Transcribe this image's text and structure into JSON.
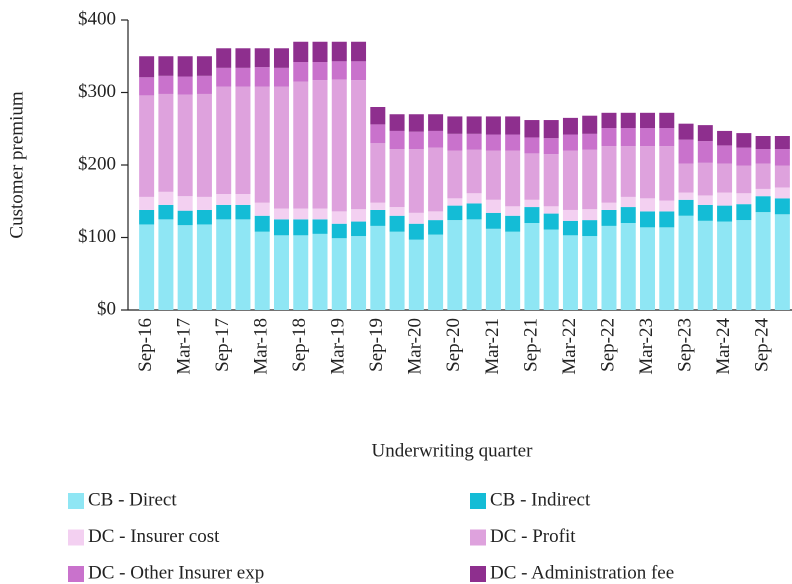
{
  "chart_data": {
    "type": "stacked_bar",
    "y_label": "Customer premium",
    "x_label": "Underwriting quarter",
    "categories": [
      "Sep-16",
      null,
      "Mar-17",
      null,
      "Sep-17",
      null,
      "Mar-18",
      null,
      "Sep-18",
      null,
      "Mar-19",
      null,
      "Sep-19",
      null,
      "Mar-20",
      null,
      "Sep-20",
      null,
      "Mar-21",
      null,
      "Sep-21",
      null,
      "Mar-22",
      null,
      "Sep-22",
      null,
      "Mar-23",
      null,
      "Sep-23",
      null,
      "Mar-24",
      null,
      "Sep-24",
      null
    ],
    "series": [
      {
        "name": "CB - Direct",
        "color": "#8fe6f4",
        "values": [
          118,
          125,
          117,
          118,
          125,
          125,
          108,
          103,
          103,
          105,
          99,
          102,
          116,
          108,
          97,
          104,
          124,
          125,
          112,
          108,
          120,
          111,
          103,
          102,
          116,
          120,
          114,
          114,
          130,
          123,
          122,
          124,
          135,
          132
        ]
      },
      {
        "name": "CB - Indirect",
        "color": "#14bcd6",
        "values": [
          20,
          20,
          20,
          20,
          20,
          20,
          22,
          22,
          22,
          20,
          20,
          20,
          22,
          22,
          22,
          20,
          20,
          22,
          22,
          22,
          22,
          22,
          20,
          22,
          22,
          22,
          22,
          22,
          22,
          22,
          22,
          22,
          22,
          22
        ]
      },
      {
        "name": "DC - Insurer cost",
        "color": "#f3d0f1",
        "values": [
          18,
          18,
          20,
          18,
          15,
          15,
          18,
          15,
          15,
          15,
          17,
          17,
          10,
          12,
          15,
          12,
          10,
          14,
          18,
          13,
          10,
          10,
          15,
          15,
          10,
          14,
          18,
          15,
          10,
          13,
          18,
          15,
          10,
          15
        ]
      },
      {
        "name": "DC - Profit",
        "color": "#dea2dd",
        "values": [
          140,
          135,
          140,
          142,
          148,
          148,
          160,
          168,
          175,
          177,
          182,
          178,
          82,
          80,
          88,
          88,
          66,
          60,
          68,
          77,
          64,
          72,
          82,
          82,
          78,
          70,
          72,
          75,
          40,
          45,
          40,
          38,
          35,
          30
        ]
      },
      {
        "name": "DC - Other Insurer exp",
        "color": "#c972cc",
        "values": [
          25,
          25,
          25,
          25,
          26,
          26,
          27,
          26,
          27,
          25,
          25,
          26,
          26,
          25,
          24,
          23,
          23,
          22,
          22,
          22,
          22,
          22,
          22,
          22,
          25,
          25,
          25,
          25,
          33,
          30,
          25,
          25,
          20,
          23
        ]
      },
      {
        "name": "DC - Administration fee",
        "color": "#8e2f8e",
        "values": [
          29,
          27,
          28,
          27,
          27,
          27,
          26,
          27,
          28,
          28,
          27,
          27,
          24,
          23,
          24,
          23,
          24,
          24,
          25,
          25,
          24,
          25,
          23,
          25,
          21,
          21,
          21,
          21,
          22,
          22,
          20,
          20,
          18,
          18
        ]
      }
    ],
    "ylim": [
      0,
      400
    ],
    "yticks": [
      {
        "value": 0,
        "label": "$0"
      },
      {
        "value": 100,
        "label": "$100"
      },
      {
        "value": 200,
        "label": "$200"
      },
      {
        "value": 300,
        "label": "$300"
      },
      {
        "value": 400,
        "label": "$400"
      }
    ],
    "grid": false,
    "legend": "bottom"
  }
}
